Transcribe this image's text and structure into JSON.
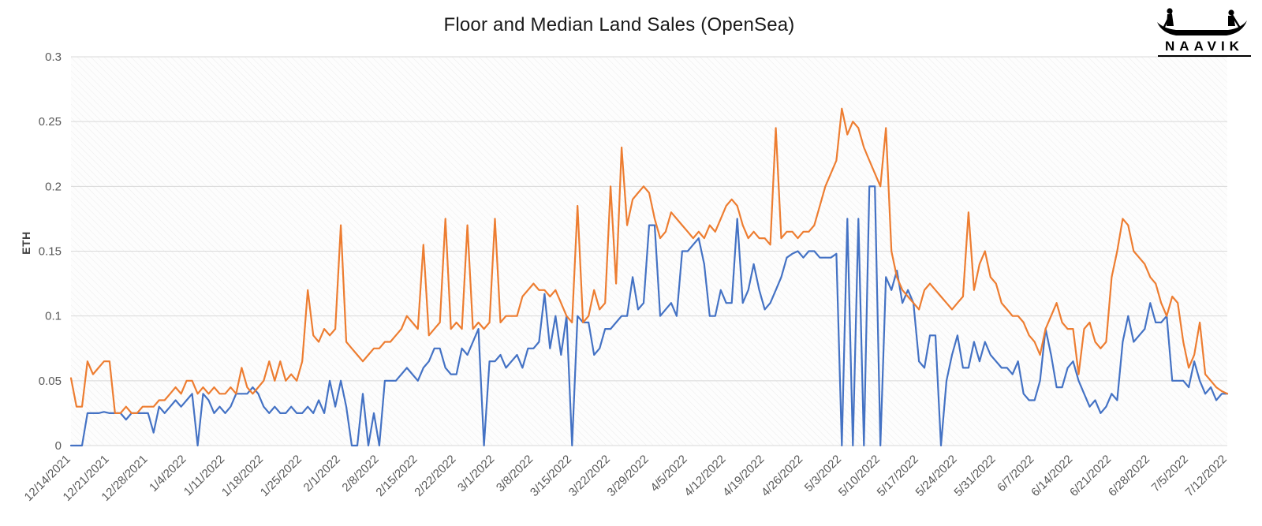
{
  "logo": {
    "text": "NAAVIK"
  },
  "chart_data": {
    "type": "line",
    "title": "Floor and Median Land Sales (OpenSea)",
    "xlabel": "",
    "ylabel": "ETH",
    "ylim": [
      0,
      0.3
    ],
    "grid": "horizontal",
    "legend_position": "none",
    "plot_background": "diagonal-hatch",
    "y_ticks": [
      0,
      0.05,
      0.1,
      0.15,
      0.2,
      0.25,
      0.3
    ],
    "y_tick_labels": [
      "0",
      "0.05",
      "0.1",
      "0.15",
      "0.2",
      "0.25",
      "0.3"
    ],
    "x_tick_interval_points": 7,
    "x_tick_labels": [
      "12/14/2021",
      "12/21/2021",
      "12/28/2021",
      "1/4/2022",
      "1/11/2022",
      "1/18/2022",
      "1/25/2022",
      "2/1/2022",
      "2/8/2022",
      "2/15/2022",
      "2/22/2022",
      "3/1/2022",
      "3/8/2022",
      "3/15/2022",
      "3/22/2022",
      "3/29/2022",
      "4/5/2022",
      "4/12/2022",
      "4/19/2022",
      "4/26/2022",
      "5/3/2022",
      "5/10/2022",
      "5/17/2022",
      "5/24/2022",
      "5/31/2022",
      "6/7/2022",
      "6/14/2022",
      "6/21/2022",
      "6/28/2022",
      "7/5/2022",
      "7/12/2022"
    ],
    "series": [
      {
        "name": "Floor",
        "color": "#4472C4",
        "values": [
          0,
          0,
          0,
          0.025,
          0.025,
          0.025,
          0.026,
          0.025,
          0.025,
          0.025,
          0.02,
          0.025,
          0.025,
          0.025,
          0.025,
          0.01,
          0.03,
          0.025,
          0.03,
          0.035,
          0.03,
          0.035,
          0.04,
          0,
          0.04,
          0.035,
          0.025,
          0.03,
          0.025,
          0.03,
          0.04,
          0.04,
          0.04,
          0.045,
          0.04,
          0.03,
          0.025,
          0.03,
          0.025,
          0.025,
          0.03,
          0.025,
          0.025,
          0.03,
          0.025,
          0.035,
          0.025,
          0.05,
          0.03,
          0.05,
          0.03,
          0,
          0,
          0.04,
          0,
          0.025,
          0,
          0.05,
          0.05,
          0.05,
          0.055,
          0.06,
          0.055,
          0.05,
          0.06,
          0.065,
          0.075,
          0.075,
          0.06,
          0.055,
          0.055,
          0.075,
          0.07,
          0.08,
          0.09,
          0,
          0.065,
          0.065,
          0.07,
          0.06,
          0.065,
          0.07,
          0.06,
          0.075,
          0.075,
          0.08,
          0.117,
          0.075,
          0.1,
          0.07,
          0.1,
          0,
          0.1,
          0.095,
          0.095,
          0.07,
          0.075,
          0.09,
          0.09,
          0.095,
          0.1,
          0.1,
          0.13,
          0.105,
          0.11,
          0.17,
          0.17,
          0.1,
          0.105,
          0.11,
          0.1,
          0.15,
          0.15,
          0.155,
          0.16,
          0.14,
          0.1,
          0.1,
          0.12,
          0.11,
          0.11,
          0.175,
          0.11,
          0.12,
          0.14,
          0.12,
          0.105,
          0.11,
          0.12,
          0.13,
          0.145,
          0.148,
          0.15,
          0.145,
          0.15,
          0.15,
          0.145,
          0.145,
          0.145,
          0.148,
          0,
          0.175,
          0,
          0.175,
          0,
          0.2,
          0.2,
          0,
          0.13,
          0.12,
          0.135,
          0.11,
          0.12,
          0.11,
          0.065,
          0.06,
          0.085,
          0.085,
          0,
          0.05,
          0.07,
          0.085,
          0.06,
          0.06,
          0.08,
          0.065,
          0.08,
          0.07,
          0.065,
          0.06,
          0.06,
          0.055,
          0.065,
          0.04,
          0.035,
          0.035,
          0.05,
          0.09,
          0.07,
          0.045,
          0.045,
          0.06,
          0.065,
          0.05,
          0.04,
          0.03,
          0.035,
          0.025,
          0.03,
          0.04,
          0.035,
          0.08,
          0.1,
          0.08,
          0.085,
          0.09,
          0.11,
          0.095,
          0.095,
          0.1,
          0.05,
          0.05,
          0.05,
          0.045,
          0.065,
          0.05,
          0.04,
          0.045,
          0.035,
          0.04,
          0.04
        ]
      },
      {
        "name": "Median",
        "color": "#ED7D31",
        "values": [
          0.052,
          0.03,
          0.03,
          0.065,
          0.055,
          0.06,
          0.065,
          0.065,
          0.025,
          0.025,
          0.03,
          0.025,
          0.025,
          0.03,
          0.03,
          0.03,
          0.035,
          0.035,
          0.04,
          0.045,
          0.04,
          0.05,
          0.05,
          0.04,
          0.045,
          0.04,
          0.045,
          0.04,
          0.04,
          0.045,
          0.04,
          0.06,
          0.045,
          0.04,
          0.045,
          0.05,
          0.065,
          0.05,
          0.065,
          0.05,
          0.055,
          0.05,
          0.065,
          0.12,
          0.085,
          0.08,
          0.09,
          0.085,
          0.09,
          0.17,
          0.08,
          0.075,
          0.07,
          0.065,
          0.07,
          0.075,
          0.075,
          0.08,
          0.08,
          0.085,
          0.09,
          0.1,
          0.095,
          0.09,
          0.155,
          0.085,
          0.09,
          0.095,
          0.175,
          0.09,
          0.095,
          0.09,
          0.17,
          0.09,
          0.095,
          0.09,
          0.095,
          0.175,
          0.095,
          0.1,
          0.1,
          0.1,
          0.115,
          0.12,
          0.125,
          0.12,
          0.12,
          0.115,
          0.12,
          0.11,
          0.1,
          0.095,
          0.185,
          0.095,
          0.1,
          0.12,
          0.105,
          0.11,
          0.2,
          0.125,
          0.23,
          0.17,
          0.19,
          0.195,
          0.2,
          0.195,
          0.175,
          0.16,
          0.165,
          0.18,
          0.175,
          0.17,
          0.165,
          0.16,
          0.165,
          0.16,
          0.17,
          0.165,
          0.175,
          0.185,
          0.19,
          0.185,
          0.17,
          0.16,
          0.165,
          0.16,
          0.16,
          0.155,
          0.245,
          0.16,
          0.165,
          0.165,
          0.16,
          0.165,
          0.165,
          0.17,
          0.185,
          0.2,
          0.21,
          0.22,
          0.26,
          0.24,
          0.25,
          0.245,
          0.23,
          0.22,
          0.21,
          0.2,
          0.245,
          0.15,
          0.13,
          0.12,
          0.115,
          0.11,
          0.105,
          0.12,
          0.125,
          0.12,
          0.115,
          0.11,
          0.105,
          0.11,
          0.115,
          0.18,
          0.12,
          0.14,
          0.15,
          0.13,
          0.125,
          0.11,
          0.105,
          0.1,
          0.1,
          0.095,
          0.085,
          0.08,
          0.07,
          0.09,
          0.1,
          0.11,
          0.095,
          0.09,
          0.09,
          0.055,
          0.09,
          0.095,
          0.08,
          0.075,
          0.08,
          0.13,
          0.15,
          0.175,
          0.17,
          0.15,
          0.145,
          0.14,
          0.13,
          0.125,
          0.11,
          0.1,
          0.115,
          0.11,
          0.08,
          0.06,
          0.07,
          0.095,
          0.055,
          0.05,
          0.045,
          0.042,
          0.04
        ]
      }
    ]
  }
}
